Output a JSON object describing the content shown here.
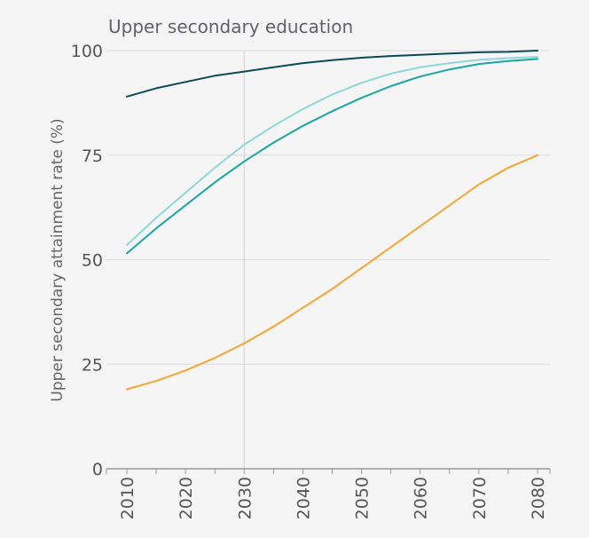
{
  "chart_data": {
    "type": "line",
    "title": "Upper secondary education",
    "xlabel": "",
    "ylabel": "Upper secondary attainment rate (%)",
    "xlim": [
      2010,
      2080
    ],
    "ylim": [
      0,
      100
    ],
    "x_ticks": [
      "2010",
      "2020",
      "2030",
      "2040",
      "2050",
      "2060",
      "2070",
      "2080"
    ],
    "y_ticks": [
      "0",
      "25",
      "50",
      "75",
      "100"
    ],
    "reference_line_x": 2030,
    "grid": true,
    "legend": "none",
    "x": [
      2010,
      2015,
      2020,
      2025,
      2030,
      2035,
      2040,
      2045,
      2050,
      2055,
      2060,
      2065,
      2070,
      2075,
      2080
    ],
    "series": [
      {
        "color": "#0d4a57",
        "values": [
          89,
          91,
          92.5,
          94,
          95,
          96,
          97,
          97.7,
          98.3,
          98.7,
          99,
          99.3,
          99.6,
          99.7,
          100
        ]
      },
      {
        "color": "#8fd6d6",
        "values": [
          53.5,
          60,
          66,
          72,
          77.5,
          82,
          86,
          89.5,
          92.3,
          94.5,
          96,
          97,
          97.8,
          98.2,
          98.5
        ]
      },
      {
        "color": "#1aa6a0",
        "values": [
          51.5,
          57.5,
          63,
          68.5,
          73.5,
          78,
          82,
          85.5,
          88.7,
          91.5,
          93.8,
          95.5,
          96.8,
          97.5,
          98
        ]
      },
      {
        "color": "#f5a532",
        "values": [
          19,
          21,
          23.5,
          26.5,
          30,
          34,
          38.5,
          43,
          48,
          53,
          58,
          63,
          68,
          72,
          75
        ]
      }
    ]
  }
}
